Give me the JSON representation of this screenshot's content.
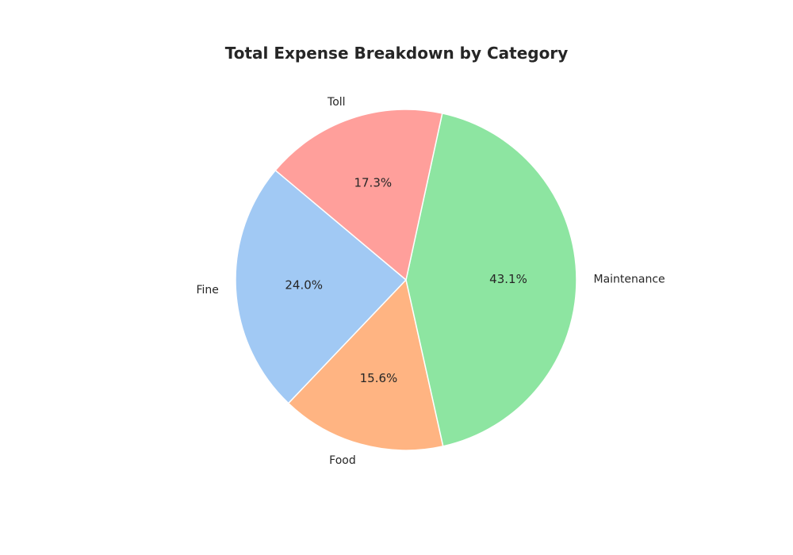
{
  "chart_data": {
    "type": "pie",
    "title": "Total Expense Breakdown by Category",
    "categories": [
      "Fine",
      "Food",
      "Maintenance",
      "Toll"
    ],
    "values": [
      24.0,
      15.6,
      43.1,
      17.3
    ],
    "value_labels": [
      "24.0%",
      "15.6%",
      "43.1%",
      "17.3%"
    ],
    "colors": [
      "#a1c9f4",
      "#ffb482",
      "#8de5a1",
      "#ff9f9b"
    ],
    "start_angle_deg": 140,
    "direction": "counterclockwise",
    "slice_edge_color": "#ffffff",
    "legend": "none"
  }
}
